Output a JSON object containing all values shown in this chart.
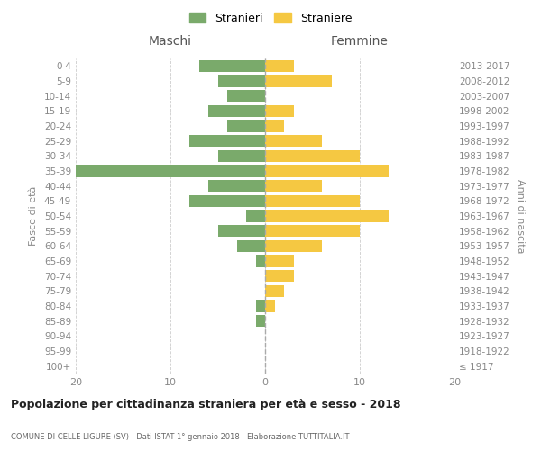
{
  "age_groups": [
    "100+",
    "95-99",
    "90-94",
    "85-89",
    "80-84",
    "75-79",
    "70-74",
    "65-69",
    "60-64",
    "55-59",
    "50-54",
    "45-49",
    "40-44",
    "35-39",
    "30-34",
    "25-29",
    "20-24",
    "15-19",
    "10-14",
    "5-9",
    "0-4"
  ],
  "birth_years": [
    "≤ 1917",
    "1918-1922",
    "1923-1927",
    "1928-1932",
    "1933-1937",
    "1938-1942",
    "1943-1947",
    "1948-1952",
    "1953-1957",
    "1958-1962",
    "1963-1967",
    "1968-1972",
    "1973-1977",
    "1978-1982",
    "1983-1987",
    "1988-1992",
    "1993-1997",
    "1998-2002",
    "2003-2007",
    "2008-2012",
    "2013-2017"
  ],
  "maschi": [
    0,
    0,
    0,
    1,
    1,
    0,
    0,
    1,
    3,
    5,
    2,
    8,
    6,
    20,
    5,
    8,
    4,
    6,
    4,
    5,
    7
  ],
  "femmine": [
    0,
    0,
    0,
    0,
    1,
    2,
    3,
    3,
    6,
    10,
    13,
    10,
    6,
    13,
    10,
    6,
    2,
    3,
    0,
    7,
    3
  ],
  "male_color": "#7aaa6b",
  "female_color": "#f5c842",
  "background_color": "#ffffff",
  "grid_color": "#cccccc",
  "title": "Popolazione per cittadinanza straniera per età e sesso - 2018",
  "subtitle": "COMUNE DI CELLE LIGURE (SV) - Dati ISTAT 1° gennaio 2018 - Elaborazione TUTTITALIA.IT",
  "left_label": "Maschi",
  "right_label": "Femmine",
  "left_axis_label": "Fasce di età",
  "right_axis_label": "Anni di nascita",
  "legend_maschi": "Stranieri",
  "legend_femmine": "Straniere",
  "xlim": 20,
  "bar_height": 0.8
}
